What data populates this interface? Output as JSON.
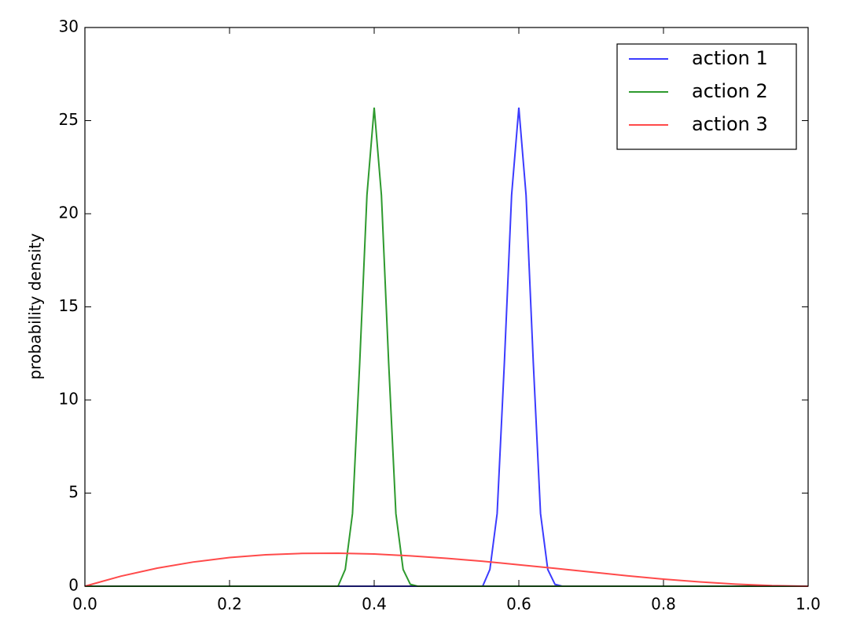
{
  "chart_data": {
    "type": "line",
    "y_label": "probability density",
    "xlim": [
      0,
      1
    ],
    "ylim": [
      0,
      30
    ],
    "xticks": [
      {
        "value": 0,
        "label": "0.0"
      },
      0.2,
      0.4,
      0.6,
      0.8,
      {
        "value": 1,
        "label": "1.0"
      }
    ],
    "yticks": [
      0,
      5,
      10,
      15,
      20,
      25,
      30
    ],
    "legend": "upper right",
    "series": [
      {
        "name": "action 1",
        "color": "#3b3bff",
        "x": [
          0,
          0.55,
          0.56,
          0.57,
          0.58,
          0.59,
          0.6,
          0.61,
          0.62,
          0.63,
          0.64,
          0.65,
          0.66,
          1
        ],
        "values": [
          0,
          0,
          0.9,
          3.9,
          12,
          21,
          25.7,
          21,
          12,
          3.9,
          0.9,
          0.1,
          0,
          0
        ]
      },
      {
        "name": "action 2",
        "color": "#2e9a2e",
        "x": [
          0,
          0.35,
          0.36,
          0.37,
          0.38,
          0.39,
          0.4,
          0.41,
          0.42,
          0.43,
          0.44,
          0.45,
          0.46,
          1
        ],
        "values": [
          0,
          0,
          0.9,
          3.9,
          12,
          21,
          25.7,
          21,
          12,
          3.9,
          0.9,
          0.1,
          0,
          0
        ]
      },
      {
        "name": "action 3",
        "color": "#ff4a4a",
        "x": [
          0,
          0.05,
          0.1,
          0.15,
          0.2,
          0.25,
          0.3,
          0.35,
          0.4,
          0.45,
          0.5,
          0.55,
          0.6,
          0.65,
          0.7,
          0.75,
          0.8,
          0.85,
          0.9,
          0.95,
          1
        ],
        "values": [
          0,
          0.54,
          0.97,
          1.3,
          1.54,
          1.69,
          1.76,
          1.77,
          1.73,
          1.63,
          1.5,
          1.34,
          1.15,
          0.96,
          0.76,
          0.56,
          0.38,
          0.23,
          0.11,
          0.03,
          0
        ]
      }
    ]
  }
}
